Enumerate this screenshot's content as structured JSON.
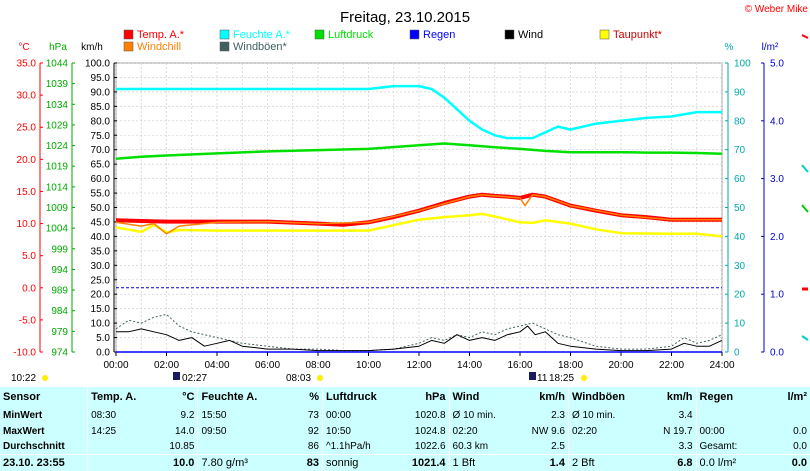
{
  "title": "Freitag, 23.10.2015",
  "copyright": "© Weber Mike",
  "units": {
    "temp": "°C",
    "press": "hPa",
    "wind": "km/h",
    "hum": "%",
    "rain": "l/m²"
  },
  "legend": [
    {
      "label": "Temp. A.*",
      "color": "#ff0000"
    },
    {
      "label": "Feuchte A.*",
      "color": "#00ffff"
    },
    {
      "label": "Luftdruck",
      "color": "#00e000"
    },
    {
      "label": "Regen",
      "color": "#0000ff"
    },
    {
      "label": "Wind",
      "color": "#000000"
    },
    {
      "label": "Taupunkt*",
      "color": "#ffff00"
    },
    {
      "label": "Windchill",
      "color": "#ff8000"
    },
    {
      "label": "Windböen*",
      "color": "#406060"
    }
  ],
  "chart_data": {
    "type": "line",
    "title": "Freitag, 23.10.2015",
    "x_ticks": [
      "00:00",
      "02:00",
      "04:00",
      "06:00",
      "08:00",
      "10:00",
      "12:00",
      "14:00",
      "16:00",
      "18:00",
      "20:00",
      "22:00",
      "24:00"
    ],
    "xlim": [
      0,
      24
    ],
    "axes": {
      "temp": {
        "unit": "°C",
        "range": [
          -10,
          35
        ],
        "ticks": [
          "35.0",
          "30.0",
          "25.0",
          "20.0",
          "15.0",
          "10.0",
          "5.0",
          "0.0",
          "-5.0",
          "-10.0"
        ]
      },
      "press": {
        "unit": "hPa",
        "range": [
          974,
          1044
        ],
        "ticks": [
          "1044",
          "1039",
          "1034",
          "1029",
          "1024",
          "1019",
          "1014",
          "1009",
          "1004",
          "999",
          "994",
          "989",
          "984",
          "979",
          "974"
        ]
      },
      "wind": {
        "unit": "km/h",
        "range": [
          0,
          100
        ],
        "ticks": [
          "100.0",
          "95.0",
          "90.0",
          "85.0",
          "80.0",
          "75.0",
          "70.0",
          "65.0",
          "60.0",
          "55.0",
          "50.0",
          "45.0",
          "40.0",
          "35.0",
          "30.0",
          "25.0",
          "20.0",
          "15.0",
          "10.0",
          "5.0",
          "0.0"
        ]
      },
      "hum": {
        "unit": "%",
        "range": [
          0,
          100
        ],
        "ticks": [
          "100",
          "90",
          "80",
          "70",
          "60",
          "50",
          "40",
          "30",
          "20",
          "10",
          "0"
        ]
      },
      "rain": {
        "unit": "l/m²",
        "range": [
          0,
          5
        ],
        "ticks": [
          "5.0",
          "4.0",
          "3.0",
          "2.0",
          "1.0",
          "0.0"
        ]
      }
    },
    "grid": true,
    "freeze_line_temp": 0,
    "series": [
      {
        "name": "Feuchte A.*",
        "axis": "hum",
        "color": "#00ffff",
        "x": [
          0,
          2,
          4,
          6,
          8,
          10,
          11,
          12,
          12.5,
          13,
          13.5,
          14,
          14.5,
          15,
          15.5,
          16,
          16.5,
          17,
          17.5,
          18,
          19,
          20,
          21,
          22,
          23,
          24
        ],
        "values": [
          91,
          91,
          91,
          91,
          91,
          91,
          92,
          92,
          91,
          88,
          84,
          80,
          77,
          75,
          74,
          74,
          74,
          76,
          78,
          77,
          79,
          80,
          81,
          81.5,
          83,
          83
        ]
      },
      {
        "name": "Luftdruck",
        "axis": "press",
        "color": "#00e000",
        "x": [
          0,
          1,
          2,
          4,
          6,
          8,
          10,
          12,
          13,
          14,
          15,
          16,
          17,
          18,
          19,
          20,
          21,
          22,
          23,
          24
        ],
        "values": [
          1020.8,
          1021.3,
          1021.6,
          1022.1,
          1022.6,
          1022.9,
          1023.2,
          1024.1,
          1024.5,
          1024.1,
          1023.6,
          1023.2,
          1022.7,
          1022.4,
          1022.4,
          1022.4,
          1022.3,
          1022.3,
          1022.2,
          1022.0
        ]
      },
      {
        "name": "Temp. A.*",
        "axis": "temp",
        "color": "#ff0000",
        "x": [
          0,
          2,
          4,
          6,
          8,
          9,
          10,
          11,
          12,
          13,
          14,
          14.5,
          15,
          15.5,
          16,
          16.5,
          17,
          17.5,
          18,
          19,
          20,
          21,
          22,
          23,
          24
        ],
        "values": [
          10.5,
          10.3,
          10.3,
          10.3,
          10.0,
          9.8,
          10.2,
          11.0,
          12.0,
          13.2,
          14.2,
          14.5,
          14.3,
          14.2,
          14.0,
          14.5,
          14.2,
          13.5,
          12.8,
          12.0,
          11.3,
          11.0,
          10.6,
          10.6,
          10.6
        ]
      },
      {
        "name": "Taupunkt*",
        "axis": "temp",
        "color": "#ffff00",
        "x": [
          0,
          1,
          1.5,
          2,
          2.5,
          4,
          6,
          8,
          10,
          12,
          13,
          14,
          14.5,
          15,
          16,
          16.5,
          17,
          18,
          19,
          20,
          22,
          23,
          24
        ],
        "values": [
          9.4,
          8.7,
          9.8,
          8.6,
          9.0,
          8.9,
          8.9,
          8.9,
          8.9,
          10.6,
          11.0,
          11.3,
          11.5,
          11.1,
          10.2,
          10.1,
          10.5,
          10.0,
          9.1,
          8.5,
          8.4,
          8.4,
          8.0
        ]
      },
      {
        "name": "Windchill",
        "axis": "temp",
        "color": "#ff8000",
        "x": [
          0,
          1,
          1.5,
          2,
          2.5,
          4,
          6,
          8,
          10,
          12,
          14,
          14.5,
          15,
          16,
          16.2,
          16.5,
          17,
          18,
          20,
          22,
          24
        ],
        "values": [
          10.2,
          9.6,
          10.0,
          8.4,
          9.6,
          10.2,
          10.3,
          10.0,
          10.2,
          12.0,
          14.2,
          14.5,
          14.3,
          14.0,
          12.8,
          14.5,
          14.2,
          12.8,
          11.3,
          10.6,
          10.6
        ]
      },
      {
        "name": "Windböen*",
        "axis": "wind",
        "color": "#406060",
        "x": [
          0,
          0.5,
          1,
          1.5,
          2,
          2.5,
          3,
          3.5,
          4,
          5,
          6,
          7,
          8,
          9,
          10,
          11,
          12,
          12.5,
          13,
          13.5,
          14,
          14.5,
          15,
          15.5,
          16,
          16.5,
          17,
          17.5,
          18,
          19,
          20,
          21,
          22,
          22.5,
          23,
          23.5,
          24
        ],
        "values": [
          8,
          11,
          10,
          12,
          13,
          9,
          7,
          6,
          5,
          3,
          2,
          1,
          1,
          0.5,
          0.5,
          1,
          3,
          5,
          4,
          6,
          5,
          7,
          6,
          8,
          9,
          10,
          8,
          6,
          5,
          2,
          1,
          1,
          2,
          5,
          3,
          4,
          6
        ]
      },
      {
        "name": "Wind",
        "axis": "wind",
        "color": "#000000",
        "x": [
          0,
          0.5,
          1,
          1.5,
          2,
          2.5,
          3,
          3.5,
          4,
          4.5,
          5,
          6,
          7,
          8,
          9,
          10,
          11,
          12,
          12.5,
          13,
          13.5,
          14,
          14.5,
          15,
          15.5,
          16,
          16.3,
          16.6,
          17,
          17.5,
          18,
          19,
          20,
          21,
          22,
          22.5,
          23,
          23.5,
          24
        ],
        "values": [
          7,
          7,
          8,
          7,
          6,
          4,
          5,
          2,
          3,
          4,
          2,
          1,
          1,
          0.5,
          0.5,
          0.5,
          1,
          2,
          4,
          3,
          6,
          4,
          5,
          4,
          6,
          7,
          9,
          6,
          7,
          3,
          2,
          1,
          0.5,
          0.5,
          1,
          3,
          2,
          2,
          4
        ]
      },
      {
        "name": "Regen",
        "axis": "rain",
        "color": "#0000ff",
        "x": [
          0,
          24
        ],
        "values": [
          0,
          0
        ]
      }
    ]
  },
  "markers": {
    "moon_label": "10:22",
    "sunrise_time": "08:03",
    "sunset_time": "18:25",
    "moonset_label": "02:27",
    "moonset2_label": "11"
  },
  "stats": {
    "headers": [
      "Sensor",
      "Temp. A.",
      "°C",
      "Feuchte A.",
      "%",
      "Luftdruck",
      "hPa",
      "Wind",
      "km/h",
      "Windböen",
      "km/h",
      "Regen",
      "l/m²"
    ],
    "min": {
      "label": "MinWert",
      "temp_time": "08:30",
      "temp_val": "9.2",
      "hum_time": "15:50",
      "hum_val": "73",
      "press_time": "00:00",
      "press_val": "1020.8",
      "wind_time": "Ø 10 min.",
      "wind_val": "2.3",
      "gust_time": "Ø 10 min.",
      "gust_val": "3.4",
      "rain_time": "",
      "rain_val": ""
    },
    "max": {
      "label": "MaxWert",
      "temp_time": "14:25",
      "temp_val": "14.0",
      "hum_time": "09:50",
      "hum_val": "92",
      "press_time": "10:50",
      "press_val": "1024.8",
      "wind_time": "02:20",
      "wind_val": "NW 9.6",
      "gust_time": "02:20",
      "gust_val": "N 19.7",
      "rain_time": "00:00",
      "rain_val": "0.0"
    },
    "avg": {
      "label": "Durchschnitt",
      "temp_time": "",
      "temp_val": "10.85",
      "hum_time": "",
      "hum_val": "86",
      "press_time": "^1.1hPa/h",
      "press_val": "1022.6",
      "wind_time": "60.3 km",
      "wind_val": "2.5",
      "gust_time": "",
      "gust_val": "3.3",
      "rain_time": "Gesamt:",
      "rain_val": "0.0"
    },
    "cur": {
      "label": "23.10. 23:55",
      "temp_time": "",
      "temp_val": "10.0",
      "hum_time": "7.80 g/m³",
      "hum_val": "83",
      "press_time": "sonnig",
      "press_val": "1021.4",
      "wind_time": "1 Bft",
      "wind_val": "1.4",
      "gust_time": "2 Bft",
      "gust_val": "6.8",
      "rain_time": "0.0 l/m²",
      "rain_val": "0.0"
    }
  }
}
